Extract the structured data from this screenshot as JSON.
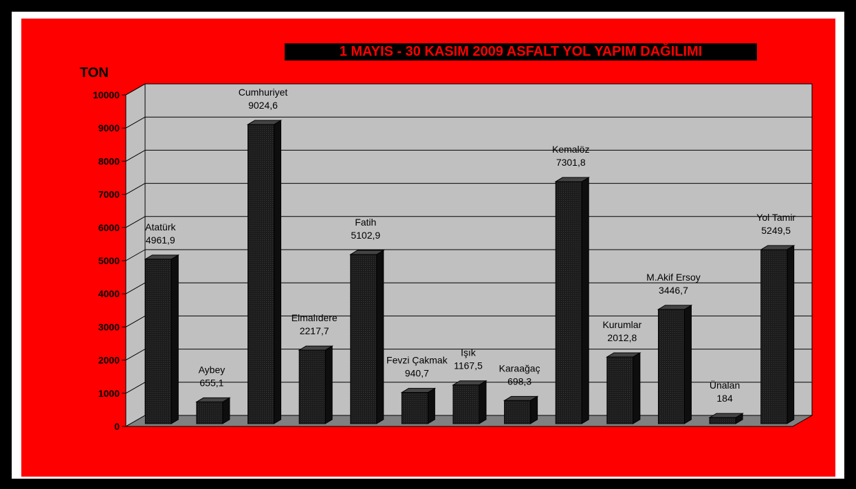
{
  "colors": {
    "background": "#ff0000",
    "plot_wall": "#c0c0c0",
    "floor": "#808080",
    "bar": "#1a1a1a",
    "title_text": "#ff0000",
    "title_bg": "#000000"
  },
  "chart_data": {
    "type": "bar",
    "title": "1 MAYIS - 30 KASIM 2009 ASFALT YOL YAPIM DAĞILIMI",
    "ylabel": "TON",
    "xlabel": "",
    "ylim": [
      0,
      10000
    ],
    "yticks": [
      0,
      1000,
      2000,
      3000,
      4000,
      5000,
      6000,
      7000,
      8000,
      9000,
      10000
    ],
    "grid": true,
    "three_d": true,
    "categories": [
      "Atatürk",
      "Aybey",
      "Cumhuriyet",
      "Elmalıdere",
      "Fatih",
      "Fevzi Çakmak",
      "Işık",
      "Karaağaç",
      "Kemalöz",
      "Kurumlar",
      "M.Akif Ersoy",
      "Ünalan",
      "Yol Tamir"
    ],
    "values": [
      4961.9,
      655.1,
      9024.6,
      2217.7,
      5102.9,
      940.7,
      1167.5,
      698.3,
      7301.8,
      2012.8,
      3446.7,
      184,
      5249.5
    ],
    "value_labels": [
      "4961,9",
      "655,1",
      "9024,6",
      "2217,7",
      "5102,9",
      "940,7",
      "1167,5",
      "698,3",
      "7301,8",
      "2012,8",
      "3446,7",
      "184",
      "5249,5"
    ]
  }
}
